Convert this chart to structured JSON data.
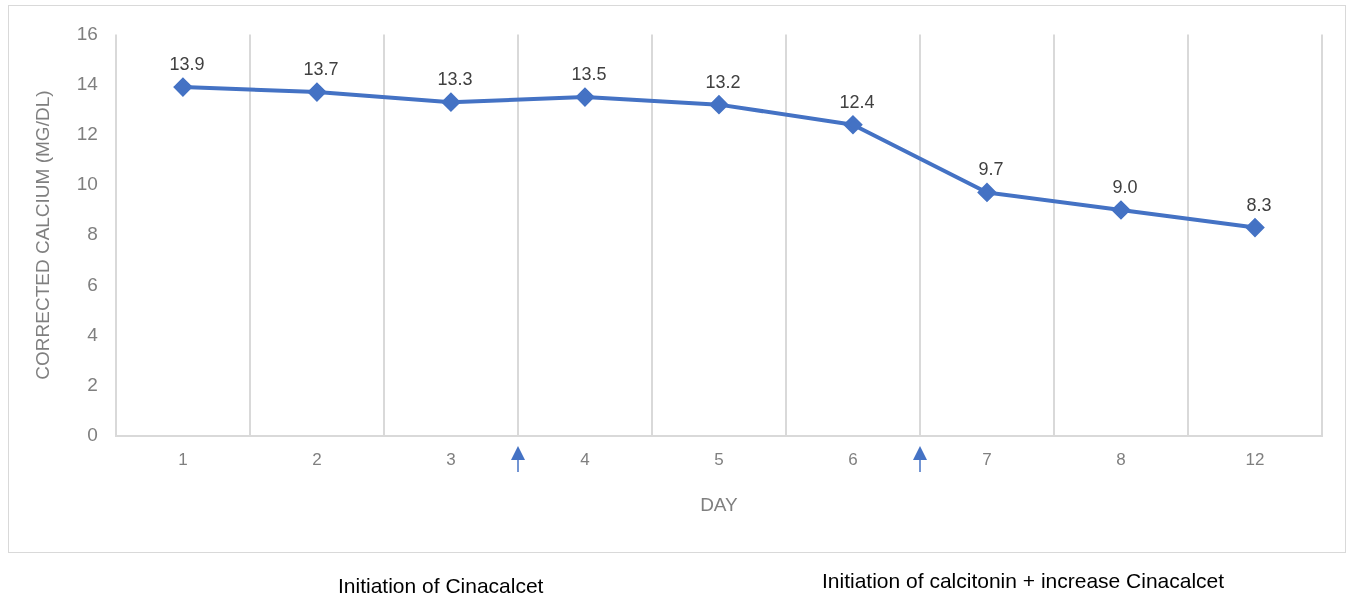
{
  "chart_data": {
    "type": "line",
    "xlabel": "DAY",
    "ylabel": "CORRECTED CALCIUM (MG/DL)",
    "categories": [
      "1",
      "2",
      "3",
      "4",
      "5",
      "6",
      "7",
      "8",
      "12"
    ],
    "series": [
      {
        "color": "#4472c4",
        "values": [
          13.9,
          13.7,
          13.3,
          13.5,
          13.2,
          12.4,
          9.7,
          9.0,
          8.3
        ],
        "value_labels": [
          "13.9",
          "13.7",
          "13.3",
          "13.5",
          "13.2",
          "12.4",
          "9.7",
          "9.0",
          "8.3"
        ]
      }
    ],
    "ylim": [
      0,
      16
    ],
    "yticks": [
      0,
      2,
      4,
      6,
      8,
      10,
      12,
      14,
      16
    ],
    "grid": "x",
    "legend": false,
    "marker": "diamond",
    "line_style": "solid",
    "annotations": [
      "Initiation of Cinacalcet",
      "Initiation of calcitonin + increase Cinacalcet"
    ]
  }
}
